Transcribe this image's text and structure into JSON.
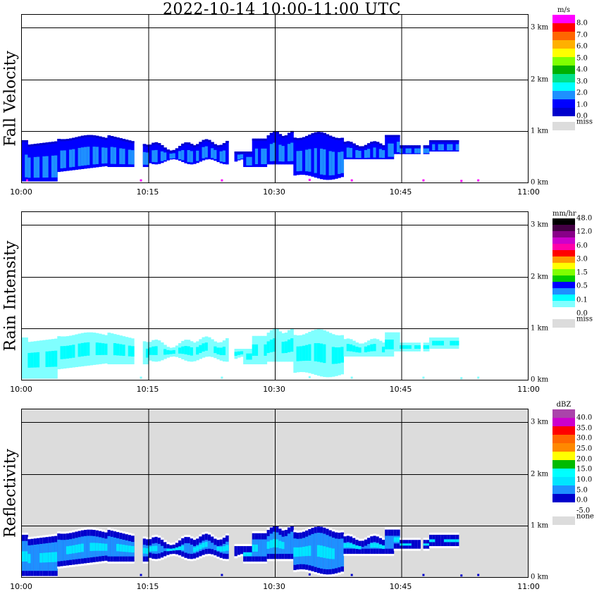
{
  "title": "2022-10-14   10:00-11:00 UTC",
  "chart_data": [
    {
      "type": "heatmap",
      "name": "fall_velocity",
      "ylabel": "Fall Velocity",
      "x_ticks": [
        "10:00",
        "10:15",
        "10:30",
        "10:45",
        "11:00"
      ],
      "y_ticks": [
        "0 km",
        "1 km",
        "2 km",
        "3 km"
      ],
      "xlim_minutes": [
        0,
        60
      ],
      "ylim_km": [
        0,
        3.25
      ],
      "background": "#ffffff",
      "grid": true,
      "legend_unit": "m/s",
      "legend_colors": [
        "#0000cc",
        "#0000ff",
        "#1e90ff",
        "#00ffff",
        "#00e08a",
        "#00b000",
        "#7fff00",
        "#ffff00",
        "#ffb000",
        "#ff6600",
        "#ff0000",
        "#ff00ff"
      ],
      "legend_labels": [
        "0.0",
        "1.0",
        "2.0",
        "3.0",
        "4.0",
        "5.0",
        "6.0",
        "7.0",
        "8.0"
      ],
      "missing_label": "miss",
      "missing_color": "#dcdcdc"
    },
    {
      "type": "heatmap",
      "name": "rain_intensity",
      "ylabel": "Rain Intensity",
      "x_ticks": [
        "10:00",
        "10:15",
        "10:30",
        "10:45",
        "11:00"
      ],
      "y_ticks": [
        "0 km",
        "1 km",
        "2 km",
        "3 km"
      ],
      "xlim_minutes": [
        0,
        60
      ],
      "ylim_km": [
        0,
        3.25
      ],
      "background": "#ffffff",
      "grid": true,
      "legend_unit": "mm/hr",
      "legend_colors": [
        "#ffffff",
        "#80ffff",
        "#00ffff",
        "#1e90ff",
        "#0000ff",
        "#00cc00",
        "#7fff00",
        "#ffff00",
        "#ff9900",
        "#ff0000",
        "#ff00aa",
        "#cc00cc",
        "#880088",
        "#440044",
        "#000000"
      ],
      "legend_labels": [
        "0.0",
        "0.1",
        "0.5",
        "1.5",
        "3.0",
        "6.0",
        "12.0",
        "48.0"
      ],
      "missing_label": "miss",
      "missing_color": "#dcdcdc"
    },
    {
      "type": "heatmap",
      "name": "reflectivity",
      "ylabel": "Reflectivity",
      "x_ticks": [
        "10:00",
        "10:15",
        "10:30",
        "10:45",
        "11:00"
      ],
      "y_ticks": [
        "0 km",
        "1 km",
        "2 km",
        "3 km"
      ],
      "xlim_minutes": [
        0,
        60
      ],
      "ylim_km": [
        0,
        3.25
      ],
      "background": "#dcdcdc",
      "grid": true,
      "legend_unit": "dBZ",
      "legend_colors": [
        "#ffffff",
        "#0000cc",
        "#1e90ff",
        "#00e5ff",
        "#00ffff",
        "#00bb00",
        "#ffff00",
        "#ff8800",
        "#ff6600",
        "#ff0000",
        "#cc00cc",
        "#aa44aa"
      ],
      "legend_labels": [
        "-5.0",
        "0.0",
        "5.0",
        "10.0",
        "15.0",
        "20.0",
        "25.0",
        "30.0",
        "35.0",
        "40.0"
      ],
      "missing_label": "none",
      "missing_color": "#dcdcdc"
    }
  ]
}
